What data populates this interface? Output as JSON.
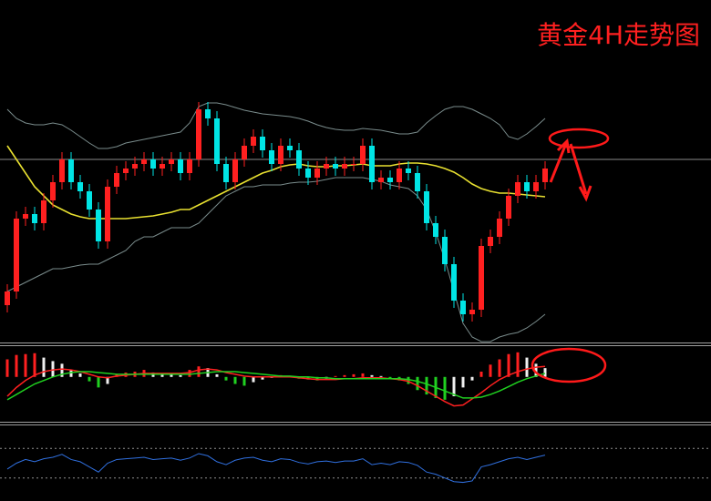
{
  "chart_data": [
    {
      "type": "candlestick",
      "title": "黄金4H走势图",
      "up_color": "#ff2020",
      "down_color": "#00e5e5",
      "ylim": [
        0,
        375
      ],
      "open": [
        40,
        55,
        135,
        140,
        130,
        155,
        175,
        200,
        175,
        165,
        145,
        110,
        170,
        185,
        190,
        195,
        200,
        190,
        195,
        200,
        185,
        200,
        255,
        245,
        195,
        175,
        200,
        215,
        225,
        210,
        195,
        215,
        210,
        190,
        180,
        190,
        195,
        190,
        195,
        195,
        215,
        175,
        180,
        175,
        190,
        185,
        165,
        130,
        115,
        85,
        45,
        30,
        35,
        105,
        115,
        135,
        160,
        175,
        165,
        175
      ],
      "high": [
        63,
        143,
        148,
        148,
        163,
        183,
        208,
        208,
        183,
        173,
        153,
        178,
        193,
        198,
        203,
        208,
        208,
        203,
        208,
        208,
        208,
        263,
        263,
        253,
        203,
        208,
        223,
        233,
        233,
        218,
        223,
        223,
        218,
        198,
        198,
        203,
        203,
        203,
        203,
        223,
        223,
        188,
        188,
        198,
        198,
        193,
        173,
        138,
        123,
        93,
        53,
        43,
        113,
        123,
        143,
        168,
        183,
        183,
        183,
        198
      ],
      "low": [
        32,
        47,
        127,
        122,
        122,
        147,
        167,
        167,
        157,
        137,
        102,
        102,
        162,
        177,
        182,
        187,
        182,
        182,
        187,
        177,
        177,
        192,
        237,
        187,
        167,
        167,
        192,
        207,
        202,
        187,
        187,
        202,
        182,
        172,
        172,
        182,
        182,
        182,
        187,
        187,
        167,
        167,
        167,
        167,
        177,
        157,
        122,
        107,
        77,
        37,
        22,
        22,
        27,
        97,
        107,
        127,
        152,
        157,
        157,
        167
      ],
      "close": [
        55,
        135,
        140,
        130,
        155,
        175,
        200,
        175,
        165,
        145,
        110,
        170,
        185,
        190,
        195,
        200,
        190,
        195,
        200,
        185,
        200,
        255,
        245,
        195,
        175,
        200,
        215,
        225,
        210,
        195,
        215,
        210,
        190,
        180,
        190,
        195,
        190,
        195,
        195,
        215,
        175,
        180,
        175,
        190,
        185,
        165,
        130,
        115,
        85,
        45,
        30,
        35,
        105,
        115,
        135,
        160,
        175,
        165,
        175,
        190
      ],
      "series": [
        {
          "color": "#e8e030",
          "values": [
            215,
            200,
            185,
            170,
            160,
            150,
            145,
            140,
            137,
            135,
            135,
            135,
            135,
            135,
            136,
            137,
            138,
            140,
            142,
            145,
            145,
            150,
            155,
            160,
            165,
            170,
            175,
            180,
            185,
            188,
            192,
            194,
            195,
            193,
            192,
            192,
            193,
            193,
            194,
            195,
            193,
            193,
            193,
            195,
            196,
            196,
            195,
            193,
            190,
            186,
            180,
            173,
            168,
            165,
            163,
            163,
            162,
            161,
            160,
            159
          ]
        },
        {
          "color": "#7a8c8c",
          "values": [
            255,
            245,
            240,
            238,
            238,
            240,
            238,
            232,
            225,
            218,
            212,
            212,
            214,
            218,
            220,
            222,
            224,
            226,
            228,
            230,
            240,
            258,
            262,
            262,
            260,
            257,
            254,
            252,
            250,
            249,
            248,
            247,
            245,
            242,
            238,
            235,
            233,
            232,
            232,
            234,
            233,
            232,
            230,
            228,
            228,
            230,
            240,
            248,
            255,
            258,
            258,
            255,
            250,
            245,
            238,
            225,
            222,
            228,
            236,
            245
          ]
        },
        {
          "color": "#7a8c8c",
          "values": [
            55,
            60,
            65,
            70,
            75,
            80,
            80,
            82,
            84,
            85,
            85,
            90,
            95,
            100,
            110,
            115,
            115,
            120,
            125,
            125,
            125,
            130,
            140,
            150,
            160,
            165,
            170,
            170,
            172,
            172,
            172,
            174,
            175,
            175,
            176,
            178,
            180,
            180,
            180,
            180,
            178,
            176,
            172,
            170,
            168,
            160,
            145,
            120,
            90,
            55,
            20,
            5,
            0,
            0,
            5,
            8,
            10,
            15,
            22,
            30
          ]
        }
      ]
    },
    {
      "type": "macd",
      "ylim": [
        -50,
        34
      ],
      "up_color": "#ff2020",
      "fade_color": "#f0f0f0",
      "down_color": "#20d020",
      "values": [
        20,
        25,
        26,
        27,
        22,
        18,
        15,
        8,
        4,
        -5,
        -12,
        -8,
        3,
        5,
        6,
        8,
        5,
        4,
        3,
        2,
        8,
        12,
        10,
        3,
        -4,
        -8,
        -10,
        -6,
        -3,
        -1,
        2,
        1,
        -2,
        -3,
        -4,
        -2,
        1,
        2,
        3,
        4,
        2,
        1,
        -2,
        -4,
        -8,
        -15,
        -20,
        -24,
        -26,
        -22,
        -12,
        -4,
        6,
        14,
        20,
        26,
        28,
        22,
        15,
        10
      ],
      "series": [
        {
          "color": "#ff2020",
          "values": [
            -22,
            -12,
            -4,
            2,
            6,
            8,
            9,
            8,
            6,
            3,
            0,
            -1,
            1,
            2,
            3,
            4,
            4,
            4,
            4,
            4,
            5,
            8,
            9,
            8,
            5,
            3,
            1,
            0,
            0,
            0,
            0,
            0,
            -1,
            -2,
            -3,
            -3,
            -3,
            -2,
            -2,
            -1,
            -1,
            -1,
            -2,
            -3,
            -5,
            -10,
            -16,
            -22,
            -28,
            -33,
            -32,
            -25,
            -18,
            -10,
            -3,
            2,
            6,
            9,
            11,
            12
          ]
        },
        {
          "color": "#20d020",
          "values": [
            -26,
            -20,
            -14,
            -8,
            -4,
            0,
            3,
            5,
            6,
            6,
            5,
            4,
            3,
            3,
            3,
            3,
            3,
            3,
            3,
            3,
            3,
            4,
            5,
            6,
            6,
            6,
            5,
            4,
            3,
            2,
            1,
            1,
            0,
            0,
            -1,
            -1,
            -2,
            -2,
            -2,
            -2,
            -2,
            -2,
            -2,
            -2,
            -3,
            -5,
            -8,
            -12,
            -16,
            -20,
            -24,
            -24,
            -23,
            -20,
            -16,
            -11,
            -6,
            -2,
            1,
            4
          ]
        }
      ]
    },
    {
      "type": "line",
      "ylim": [
        0,
        100
      ],
      "yticks": [
        30,
        70
      ],
      "grid": true,
      "color": "#3070e0",
      "values": [
        42,
        50,
        55,
        52,
        56,
        58,
        62,
        55,
        52,
        45,
        38,
        50,
        55,
        56,
        57,
        58,
        55,
        56,
        57,
        54,
        57,
        63,
        60,
        52,
        48,
        54,
        57,
        58,
        54,
        52,
        56,
        55,
        51,
        49,
        52,
        53,
        51,
        53,
        53,
        56,
        48,
        50,
        48,
        52,
        51,
        47,
        38,
        35,
        30,
        25,
        24,
        26,
        45,
        48,
        52,
        56,
        58,
        55,
        58,
        61
      ]
    }
  ]
}
